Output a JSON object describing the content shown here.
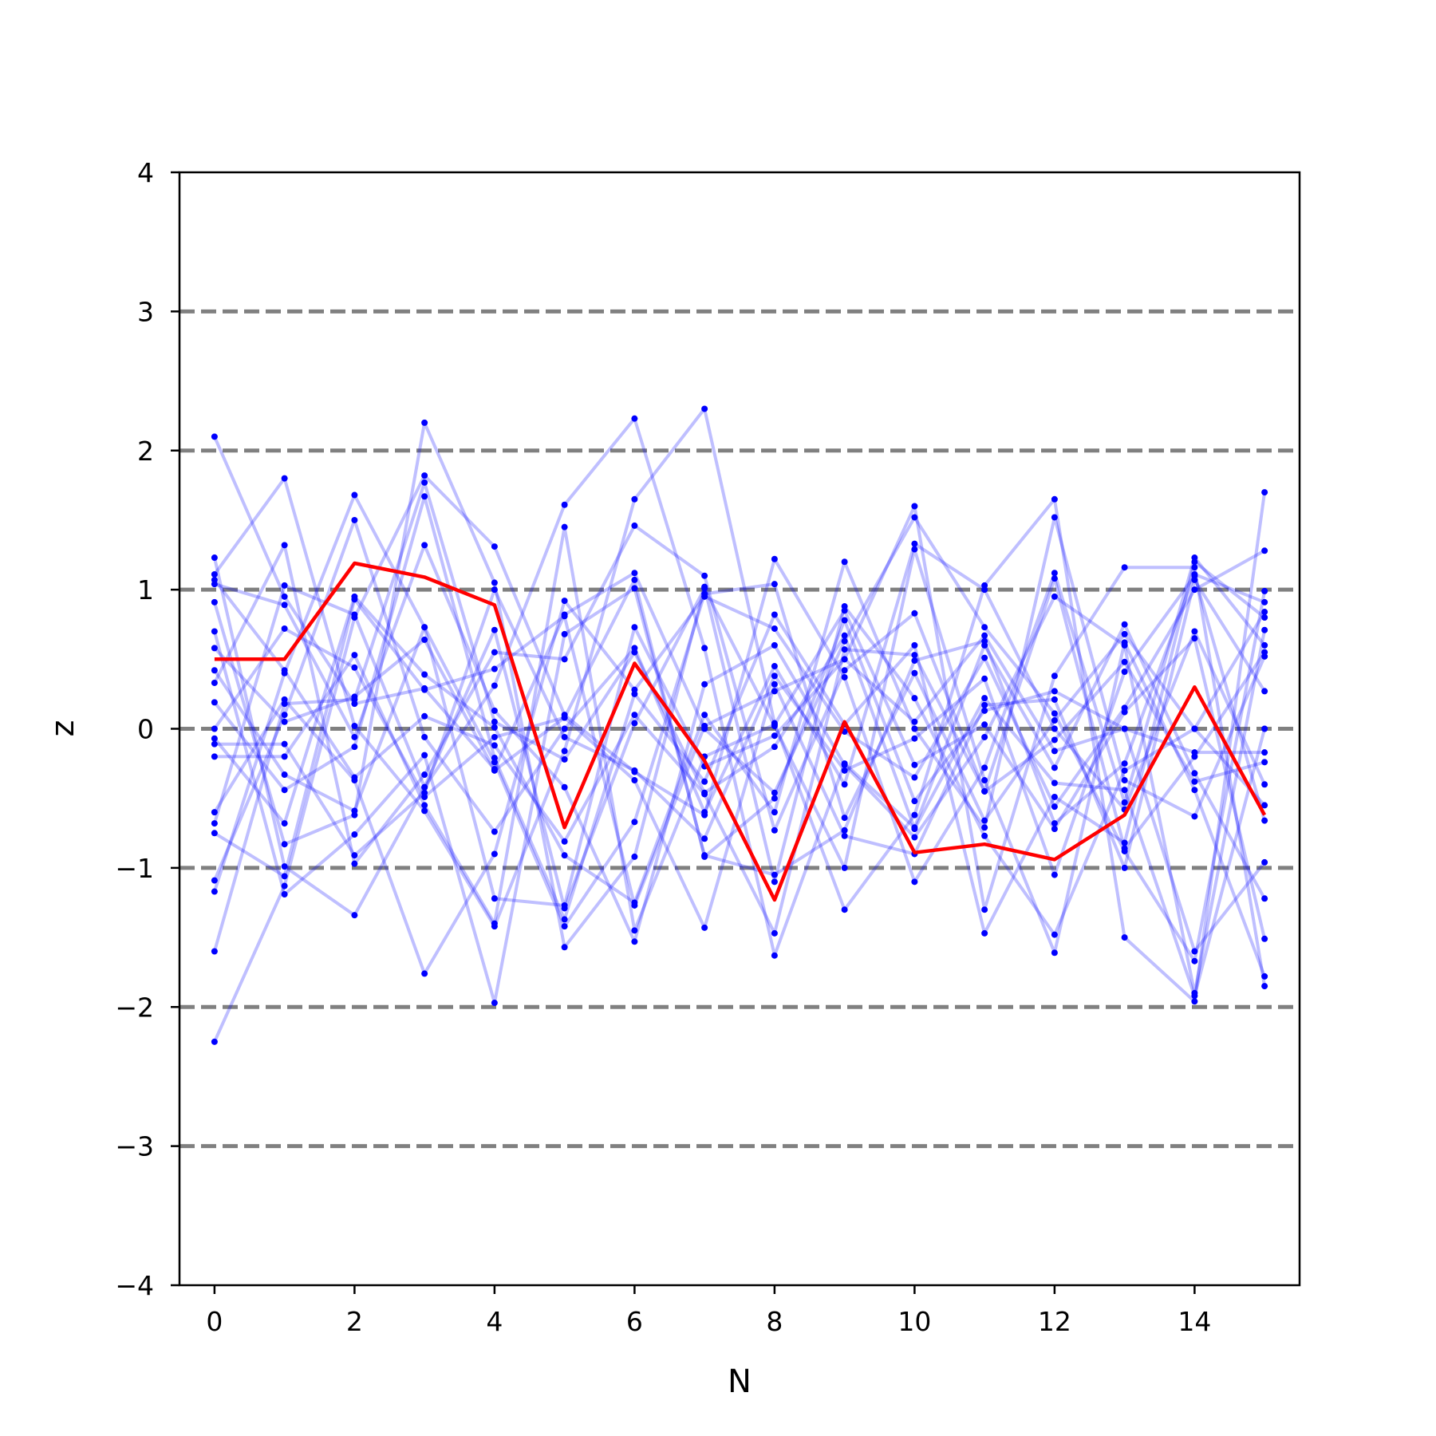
{
  "chart_data": {
    "type": "line",
    "title": "",
    "xlabel": "N",
    "ylabel": "z",
    "xlim": [
      -0.5,
      15.5
    ],
    "ylim": [
      -4,
      4
    ],
    "x_ticks": [
      0,
      2,
      4,
      6,
      8,
      10,
      12,
      14
    ],
    "x_tick_labels": [
      "0",
      "2",
      "4",
      "6",
      "8",
      "10",
      "12",
      "14"
    ],
    "y_ticks": [
      -4,
      -3,
      -2,
      -1,
      0,
      1,
      2,
      3,
      4
    ],
    "y_tick_labels": [
      "−4",
      "−3",
      "−2",
      "−1",
      "0",
      "1",
      "2",
      "3",
      "4"
    ],
    "reference_lines": [
      -3,
      -2,
      -1,
      0,
      1,
      2,
      3
    ],
    "colors": {
      "highlight": "#ff0000",
      "background_series": "#0000ff",
      "reference": "#808080"
    },
    "x": [
      0,
      1,
      2,
      3,
      4,
      5,
      6,
      7,
      8,
      9,
      10,
      11,
      12,
      13,
      14,
      15
    ],
    "highlight": {
      "values": [
        0.5,
        0.5,
        1.19,
        1.09,
        0.89,
        -0.71,
        0.47,
        -0.23,
        -1.23,
        0.05,
        -0.89,
        -0.83,
        -0.94,
        -0.62,
        0.3,
        -0.62
      ]
    },
    "background_series": [
      {
        "values": [
          2.1,
          0.95,
          0.18,
          0.29,
          -0.29,
          0.82,
          1.12,
          0.0,
          -0.46,
          0.63,
          1.52,
          0.73,
          0.11,
          -0.88,
          -1.67,
          0.99
        ]
      },
      {
        "values": [
          -2.25,
          -1.13,
          0.8,
          1.82,
          1.31,
          0.1,
          -0.31,
          -0.62,
          1.22,
          0.37,
          -1.1,
          -0.28,
          1.12,
          -0.53,
          1.23,
          0.6
        ]
      },
      {
        "values": [
          1.23,
          -0.99,
          -1.34,
          -0.42,
          0.31,
          1.61,
          2.23,
          0.58,
          -1.63,
          -0.25,
          -0.71,
          0.6,
          -0.28,
          0.75,
          -0.32,
          -1.22
        ]
      },
      {
        "values": [
          1.11,
          1.8,
          0.02,
          -0.59,
          -1.42,
          -0.16,
          1.65,
          2.3,
          0.04,
          -1.3,
          -0.62,
          1.03,
          1.65,
          -1.5,
          -1.96,
          1.7
        ]
      },
      {
        "values": [
          -1.17,
          0.4,
          1.68,
          0.73,
          -1.22,
          -1.27,
          0.73,
          -0.27,
          -0.05,
          0.5,
          1.6,
          -1.3,
          0.38,
          1.16,
          1.16,
          -1.85
        ]
      },
      {
        "values": [
          0.91,
          -0.83,
          -0.62,
          2.2,
          1.05,
          -1.57,
          -0.92,
          1.02,
          -1.1,
          0.88,
          0.22,
          -0.77,
          -1.48,
          -0.3,
          0.0,
          -0.55
        ]
      },
      {
        "values": [
          -0.6,
          0.21,
          -0.37,
          -1.76,
          -0.9,
          0.92,
          0.28,
          0.95,
          0.72,
          -0.02,
          -0.35,
          0.51,
          -0.56,
          0.15,
          1.0,
          1.28
        ]
      },
      {
        "values": [
          -0.07,
          -0.68,
          0.95,
          0.39,
          0.01,
          -0.91,
          -1.25,
          0.1,
          -0.6,
          1.2,
          0.0,
          -0.71,
          1.52,
          -0.37,
          -0.63,
          0.52
        ]
      },
      {
        "values": [
          0.33,
          1.32,
          -0.97,
          -0.33,
          0.55,
          0.5,
          1.46,
          1.1,
          -0.73,
          0.42,
          0.83,
          -0.45,
          -0.08,
          0.48,
          -0.38,
          -0.24
        ]
      },
      {
        "values": [
          -0.2,
          -0.2,
          0.53,
          -0.55,
          -1.4,
          1.45,
          -1.45,
          -0.2,
          0.03,
          0.85,
          -0.26,
          0.03,
          -0.72,
          0.12,
          0.65,
          -1.51
        ]
      },
      {
        "values": [
          0.58,
          0.05,
          0.23,
          0.64,
          -0.3,
          0.08,
          -0.37,
          -1.43,
          0.32,
          -0.77,
          -0.9,
          0.17,
          0.21,
          -1.0,
          1.07,
          0.27
        ]
      },
      {
        "values": [
          -0.68,
          1.03,
          0.82,
          -0.42,
          0.71,
          -1.29,
          0.04,
          1.01,
          0.02,
          -1.0,
          1.29,
          -0.37,
          -1.61,
          0.62,
          -0.44,
          -1.78
        ]
      },
      {
        "values": [
          0.7,
          -1.19,
          -0.76,
          -0.19,
          -1.97,
          0.68,
          1.01,
          -0.91,
          -1.05,
          -0.73,
          0.49,
          0.63,
          -0.68,
          -0.25,
          1.11,
          0.91
        ]
      },
      {
        "values": [
          1.04,
          0.89,
          -0.06,
          1.32,
          0.13,
          -0.42,
          -1.53,
          0.32,
          0.6,
          -0.26,
          -0.78,
          -0.06,
          0.95,
          0.6,
          -1.9,
          0.71
        ]
      },
      {
        "values": [
          -1.09,
          0.1,
          1.5,
          -0.06,
          -0.74,
          0.0,
          0.58,
          -0.6,
          0.45,
          -0.4,
          1.33,
          1.0,
          0.0,
          -0.58,
          0.7,
          -0.4
        ]
      },
      {
        "values": [
          0.19,
          -0.44,
          -0.13,
          1.67,
          -0.21,
          -1.37,
          0.25,
          -0.38,
          0.82,
          0.03,
          0.6,
          -1.47,
          -0.49,
          -0.82,
          1.2,
          0.8
        ]
      },
      {
        "values": [
          -0.75,
          -1.06,
          0.93,
          0.28,
          0.43,
          0.81,
          -1.27,
          0.02,
          0.27,
          0.5,
          0.05,
          0.67,
          -0.16,
          0.0,
          -1.6,
          -0.96
        ]
      },
      {
        "values": [
          1.07,
          0.42,
          -0.35,
          0.09,
          -0.12,
          -0.81,
          0.1,
          -0.47,
          -1.47,
          0.57,
          0.53,
          -0.45,
          1.08,
          -0.86,
          -0.2,
          0.55
        ]
      },
      {
        "values": [
          -0.11,
          -0.11,
          -0.91,
          -0.46,
          1.0,
          -0.06,
          -0.3,
          -0.79,
          0.38,
          -0.3,
          -0.07,
          0.36,
          -1.05,
          0.41,
          1.1,
          -0.66
        ]
      },
      {
        "values": [
          0.0,
          0.72,
          0.44,
          -0.49,
          -0.06,
          0.08,
          1.07,
          -0.92,
          -0.5,
          0.78,
          -0.52,
          0.13,
          0.27,
          0.0,
          -0.17,
          -0.17
        ]
      },
      {
        "values": [
          0.42,
          -0.33,
          -0.59,
          0.73,
          -0.24,
          -1.42,
          -0.67,
          0.97,
          1.04,
          -0.64,
          0.4,
          -0.66,
          0.06,
          0.68,
          0.0,
          0.84
        ]
      },
      {
        "values": [
          -1.6,
          0.18,
          0.21,
          1.77,
          0.05,
          -0.22,
          0.55,
          -0.46,
          -0.13,
          0.67,
          -0.72,
          0.22,
          -0.39,
          -0.44,
          -1.92,
          0.0
        ]
      }
    ]
  }
}
